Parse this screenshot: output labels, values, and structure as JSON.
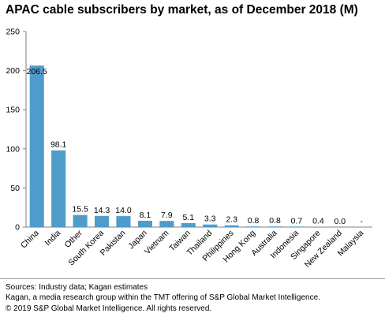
{
  "chart_data": {
    "type": "bar",
    "title": "APAC cable subscribers by market, as of December 2018 (M)",
    "categories": [
      "China",
      "India",
      "Other",
      "South Korea",
      "Pakistan",
      "Japan",
      "Vietnam",
      "Taiwan",
      "Thailand",
      "Philippines",
      "Hong Kong",
      "Australia",
      "Indonesia",
      "Singapore",
      "New Zealand",
      "Malaysia"
    ],
    "values": [
      206.5,
      98.1,
      15.5,
      14.3,
      14.0,
      8.1,
      7.9,
      5.1,
      3.3,
      2.3,
      0.8,
      0.8,
      0.7,
      0.4,
      0.0,
      null
    ],
    "data_labels": [
      "206.5",
      "98.1",
      "15.5",
      "14.3",
      "14.0",
      "8.1",
      "7.9",
      "5.1",
      "3.3",
      "2.3",
      "0.8",
      "0.8",
      "0.7",
      "0.4",
      "0.0",
      "-"
    ],
    "ylim": [
      0,
      250
    ],
    "yticks": [
      0,
      50,
      100,
      150,
      200,
      250
    ],
    "xlabel": "",
    "ylabel": "",
    "grid": false,
    "bar_color": "#4f9ccb"
  },
  "source": {
    "line1": "Sources: Industry data; Kagan estimates",
    "line2": "Kagan, a media research group within the TMT offering of S&P Global Market Intelligence.",
    "line3": "© 2019 S&P Global Market Intelligence. All rights reserved."
  }
}
